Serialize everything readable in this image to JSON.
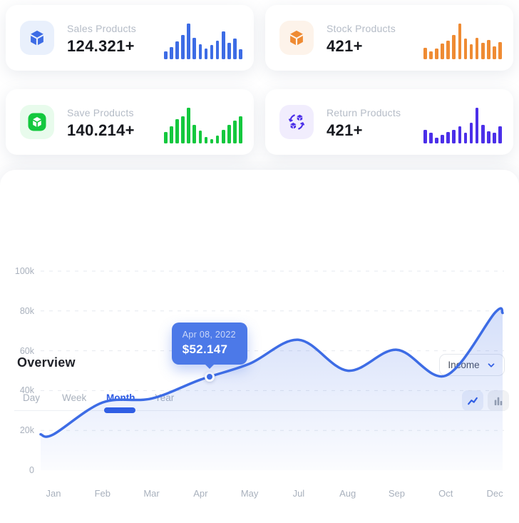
{
  "cards": [
    {
      "title": "Sales Products",
      "value": "124.321+",
      "icon": "cube-icon",
      "color": "#3d6ce5",
      "icon_bg": "#e9f0fc",
      "bars": [
        22,
        35,
        50,
        68,
        100,
        60,
        42,
        30,
        40,
        52,
        78,
        46,
        58,
        28
      ]
    },
    {
      "title": "Stock Products",
      "value": "421+",
      "icon": "cube-icon",
      "color": "#ef8b33",
      "icon_bg": "#fdf3ea",
      "bars": [
        32,
        22,
        30,
        44,
        52,
        68,
        100,
        58,
        42,
        60,
        46,
        54,
        36,
        48
      ]
    },
    {
      "title": "Save Products",
      "value": "140.214+",
      "icon": "cube-badge-icon",
      "color": "#14c83e",
      "icon_bg": "#e8fbec",
      "bars": [
        32,
        48,
        68,
        76,
        100,
        52,
        36,
        18,
        12,
        22,
        38,
        52,
        64,
        76
      ]
    },
    {
      "title": "Return Products",
      "value": "421+",
      "icon": "return-cubes-icon",
      "color": "#4b2fe9",
      "icon_bg": "#f1edfd",
      "bars": [
        38,
        30,
        16,
        25,
        32,
        38,
        48,
        30,
        58,
        100,
        52,
        34,
        30,
        48
      ]
    }
  ],
  "overview": {
    "title": "Overview",
    "accent": "#2f5ce4",
    "filter": {
      "selected": "Income"
    },
    "tabs": [
      {
        "label": "Day",
        "active": false
      },
      {
        "label": "Week",
        "active": false
      },
      {
        "label": "Month",
        "active": true
      },
      {
        "label": "Year",
        "active": false
      }
    ],
    "view_toggles": [
      "line-chart",
      "bar-chart"
    ],
    "active_view": "line-chart"
  },
  "chart_data": {
    "type": "area",
    "title": "Overview — Income by month",
    "x": [
      "Jan",
      "Feb",
      "Mar",
      "Apr",
      "May",
      "Jul",
      "Aug",
      "Sep",
      "Oct",
      "Dec"
    ],
    "values": [
      18000,
      34000,
      36000,
      45500,
      53500,
      65500,
      50000,
      60500,
      47500,
      79000
    ],
    "xlabel": "",
    "ylabel": "",
    "ylim": [
      0,
      100000
    ],
    "y_ticks": [
      "100k",
      "80k",
      "60k",
      "40k",
      "20k",
      "0"
    ],
    "grid": "horizontal-dashed",
    "legend": "none",
    "line_color": "#3d6ce5",
    "tooltip_bg": "#4c79e8",
    "marker": {
      "date": "Apr 08, 2022",
      "value": "$52.147",
      "month": "Apr",
      "offset_frac": 0.18
    }
  }
}
